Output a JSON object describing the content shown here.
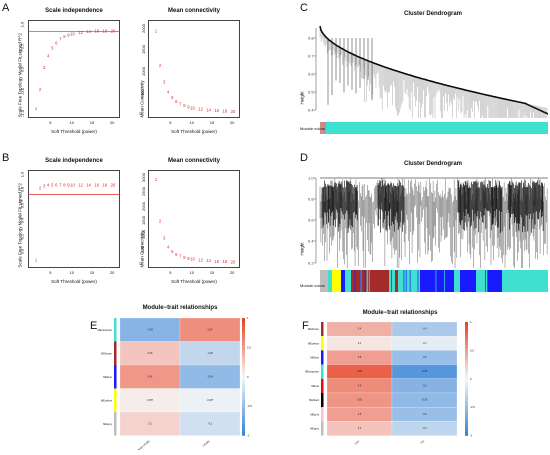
{
  "panels": {
    "A": "A",
    "B": "B",
    "C": "C",
    "D": "D",
    "E": "E",
    "F": "F"
  },
  "scale_independence_title": "Scale independence",
  "mean_connectivity_title": "Mean connectivity",
  "soft_threshold_label": "Soft Threshold (power)",
  "sft_ylabel": "Scale Free Topology Model Fit,signed R^2",
  "mc_ylabel": "Mean Connectivity",
  "cluster_dendrogram_title": "Cluster Dendrogram",
  "height_label": "Height",
  "module_colors_label": "Module colors",
  "module_trait_title": "Module−trait relationships",
  "colors": {
    "red_point": "#e0252a",
    "cutoff_line": "#e0252a",
    "turquoise": "#40e0d0",
    "blue": "#1a1aff",
    "brown": "#a52a2a",
    "yellow": "#ffff00",
    "grey": "#bebebe",
    "heat_high": "#e8452a",
    "heat_low": "#3a86d8"
  },
  "chart_data": [
    {
      "type": "scatter",
      "panel": "A-left",
      "title": "Scale independence",
      "xlabel": "Soft Threshold (power)",
      "ylabel": "Scale Free Topology Model Fit,signed R^2",
      "x": [
        1,
        2,
        3,
        4,
        5,
        6,
        7,
        8,
        9,
        10,
        12,
        14,
        16,
        18,
        20
      ],
      "y": [
        -0.88,
        -0.45,
        0.05,
        0.3,
        0.48,
        0.6,
        0.68,
        0.74,
        0.78,
        0.8,
        0.83,
        0.85,
        0.86,
        0.87,
        0.87
      ],
      "xticks": [
        "5",
        "10",
        "15",
        "20"
      ],
      "yticks": [
        "-1.0",
        "-0.5",
        "0.0",
        "0.5",
        "1.0"
      ],
      "xlim": [
        0,
        21
      ],
      "ylim": [
        -1.0,
        1.0
      ],
      "cutoff": 0.85
    },
    {
      "type": "scatter",
      "panel": "A-right",
      "title": "Mean connectivity",
      "xlabel": "Soft Threshold (power)",
      "ylabel": "Mean Connectivity",
      "x": [
        1,
        2,
        3,
        4,
        5,
        6,
        7,
        8,
        9,
        10,
        12,
        14,
        16,
        18,
        20
      ],
      "y": [
        1960,
        1150,
        760,
        520,
        390,
        300,
        240,
        200,
        170,
        145,
        115,
        95,
        80,
        70,
        60
      ],
      "xticks": [
        "5",
        "10",
        "15",
        "20"
      ],
      "yticks": [
        "0",
        "500",
        "1000",
        "1500",
        "2000"
      ],
      "xlim": [
        0,
        21
      ],
      "ylim": [
        0,
        2100
      ]
    },
    {
      "type": "scatter",
      "panel": "B-left",
      "title": "Scale independence",
      "xlabel": "Soft Threshold (power)",
      "ylabel": "Scale Free Topology Model Fit,signed R^2",
      "x": [
        1,
        2,
        3,
        4,
        5,
        6,
        7,
        8,
        9,
        10,
        12,
        14,
        16,
        18,
        20
      ],
      "y": [
        -0.1,
        0.83,
        0.86,
        0.87,
        0.87,
        0.87,
        0.87,
        0.87,
        0.87,
        0.87,
        0.87,
        0.87,
        0.87,
        0.87,
        0.87
      ],
      "xticks": [
        "5",
        "10",
        "15",
        "20"
      ],
      "yticks": [
        "0.0",
        "0.2",
        "0.4",
        "0.6",
        "0.8",
        "1.0"
      ],
      "xlim": [
        0,
        21
      ],
      "ylim": [
        -0.15,
        1.0
      ],
      "cutoff": 0.75
    },
    {
      "type": "scatter",
      "panel": "B-right",
      "title": "Mean connectivity",
      "xlabel": "Soft Threshold (power)",
      "ylabel": "Mean Connectivity",
      "x": [
        1,
        2,
        3,
        4,
        5,
        6,
        7,
        8,
        9,
        10,
        12,
        14,
        16,
        18,
        20
      ],
      "y": [
        2950,
        1500,
        900,
        600,
        430,
        330,
        270,
        230,
        200,
        170,
        140,
        115,
        95,
        85,
        75
      ],
      "xticks": [
        "5",
        "10",
        "15",
        "20"
      ],
      "yticks": [
        "0",
        "500",
        "1000",
        "1500",
        "2000",
        "2500",
        "3000"
      ],
      "xlim": [
        0,
        21
      ],
      "ylim": [
        0,
        3100
      ]
    }
  ],
  "heatmap_E": {
    "rows": [
      "MEturquoise",
      "MEbrown",
      "MEblue",
      "MEyellow",
      "MEgrey"
    ],
    "row_colors": [
      "#40e0d0",
      "#a52a2a",
      "#1a1aff",
      "#ffff00",
      "#bebebe"
    ],
    "cols": [
      "Non-UCMS",
      "UCMS"
    ],
    "values": [
      [
        -0.59,
        0.59
      ],
      [
        0.28,
        -0.28
      ],
      [
        0.54,
        -0.54
      ],
      [
        0.057,
        -0.057
      ],
      [
        0.2,
        -0.2
      ]
    ],
    "scale_ticks": [
      "1",
      "0.5",
      "0",
      "-0.5",
      "-1"
    ]
  },
  "heatmap_F": {
    "rows": [
      "MEbrown",
      "MEyellow",
      "MEblue",
      "MEturquoise",
      "MEred",
      "MEblack",
      "MEpink",
      "MEgrey"
    ],
    "row_colors": [
      "#a52a2a",
      "#ffff00",
      "#1a1aff",
      "#40e0d0",
      "#ff0000",
      "#000000",
      "#ffc0cb",
      "#bebebe"
    ],
    "cols": [
      "Con",
      "PS"
    ],
    "values": [
      [
        0.4,
        -0.4
      ],
      [
        0.1,
        -0.1
      ],
      [
        0.5,
        -0.5
      ],
      [
        0.85,
        -0.85
      ],
      [
        0.6,
        -0.6
      ],
      [
        0.55,
        -0.55
      ],
      [
        0.5,
        -0.5
      ],
      [
        0.3,
        -0.3
      ]
    ],
    "scale_ticks": [
      "1",
      "0.5",
      "0",
      "-0.5",
      "-1"
    ]
  }
}
